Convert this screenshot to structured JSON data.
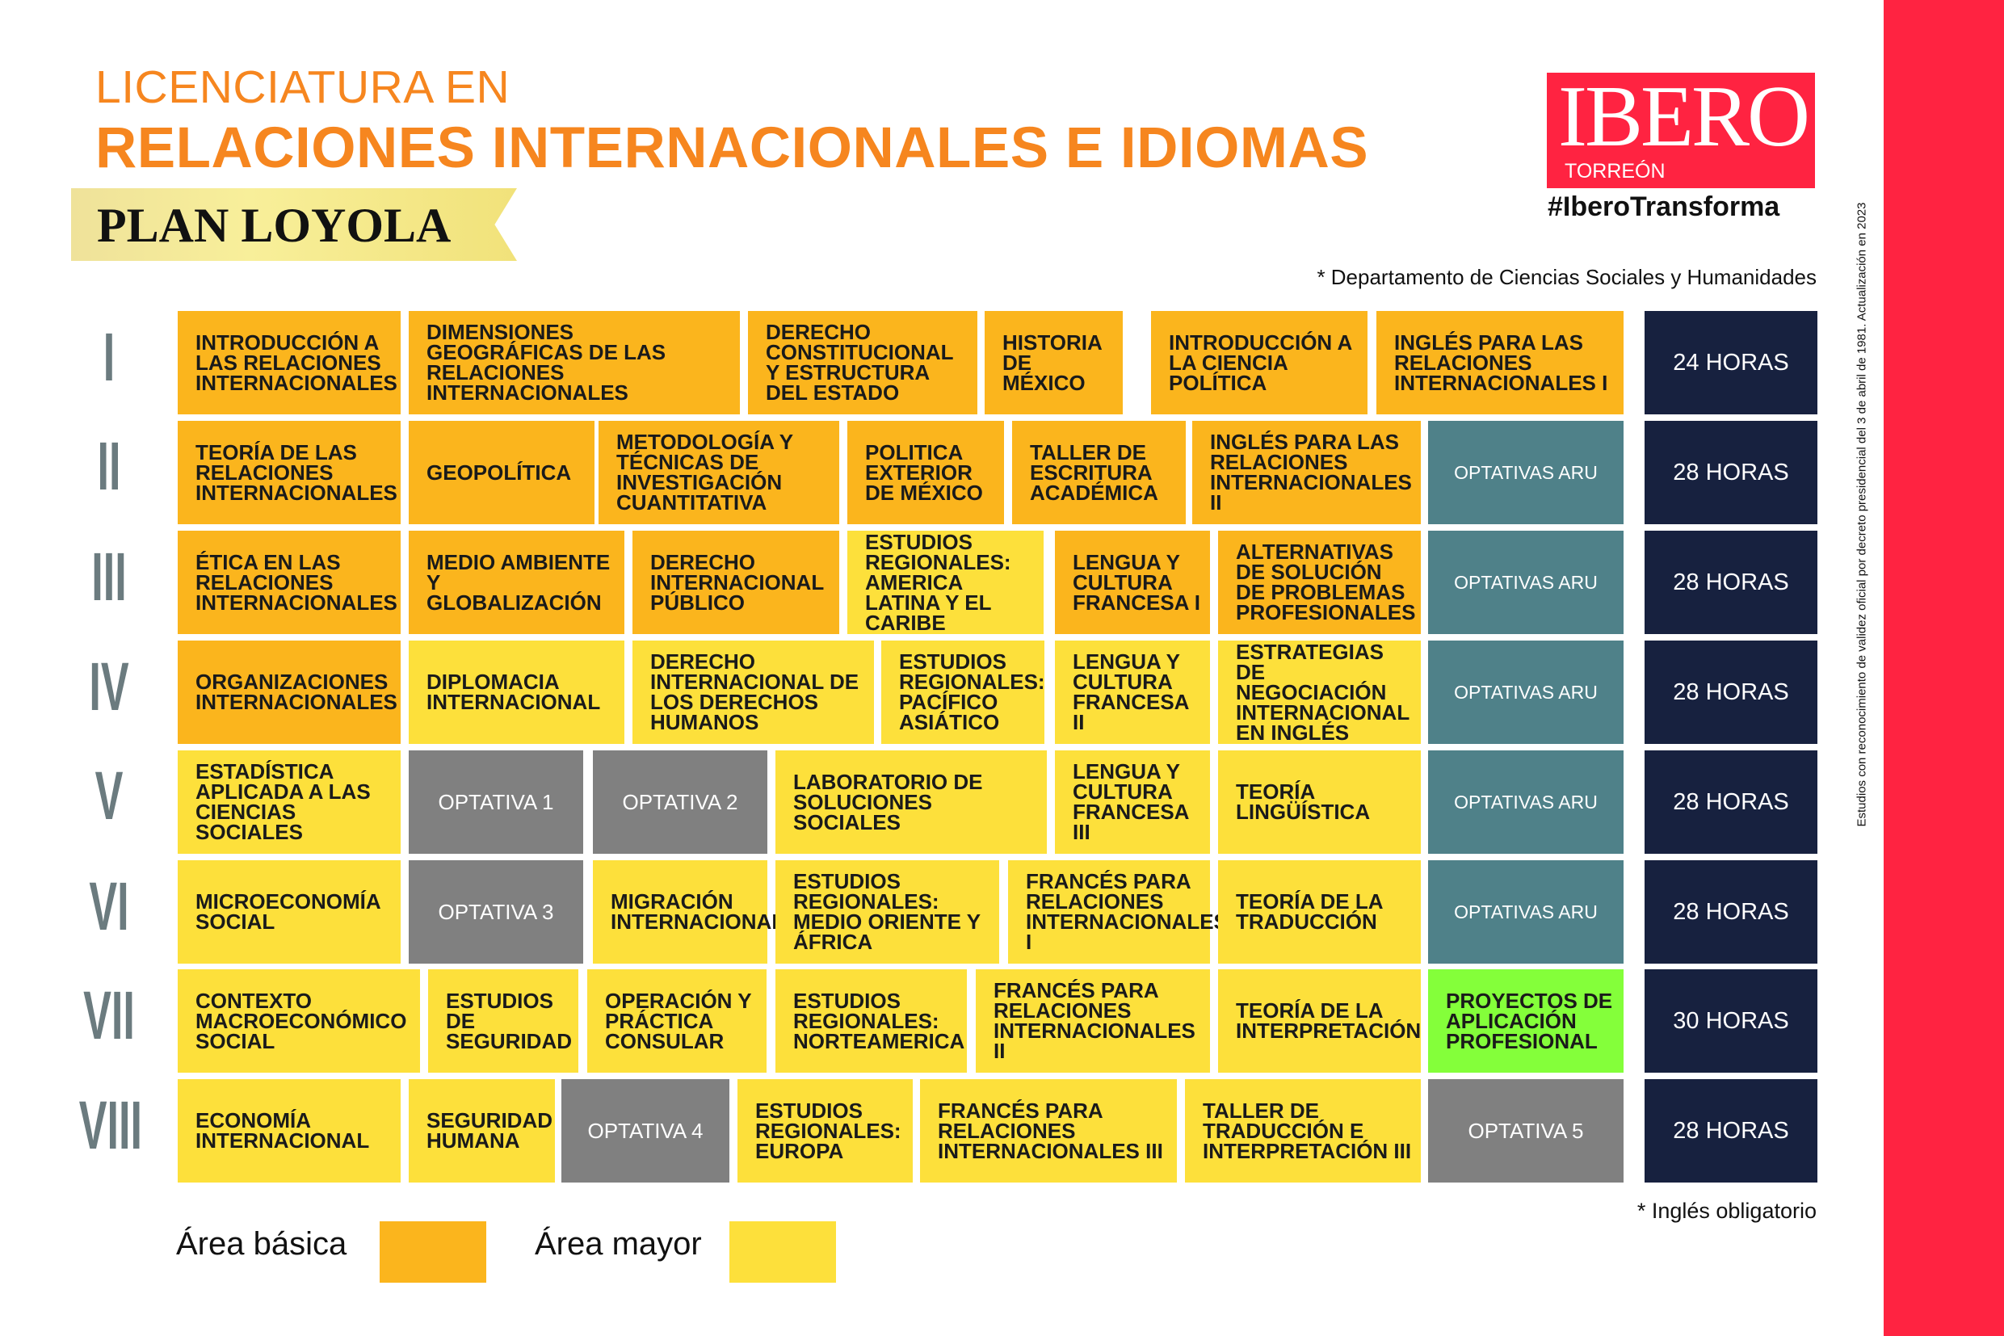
{
  "header": {
    "title_line1": "LICENCIATURA EN",
    "title_line2": "RELACIONES INTERNACIONALES E IDIOMAS",
    "plan": "PLAN LOYOLA",
    "department_note": "* Departamento de Ciencias Sociales y Humanidades"
  },
  "logo": {
    "name": "IBERO",
    "campus": "TORREÓN",
    "hashtag": "#IberoTransforma"
  },
  "side_note": "Estudios con reconocimiento de validez oficial por decreto presidencial del 3 de abril de 1981. Actualización en 2023",
  "semesters": [
    {
      "label": "I",
      "courses": [
        {
          "name": "INTRODUCCIÓN A LAS RELACIONES INTERNACIONALES",
          "area": "basic"
        },
        {
          "name": "DIMENSIONES GEOGRÁFICAS DE LAS RELACIONES INTERNACIONALES",
          "area": "basic"
        },
        {
          "name": "DERECHO CONSTITUCIONAL Y ESTRUCTURA DEL ESTADO",
          "area": "basic"
        },
        {
          "name": "HISTORIA DE MÉXICO",
          "area": "basic"
        },
        {
          "name": "INTRODUCCIÓN A LA CIENCIA POLÍTICA",
          "area": "basic"
        },
        {
          "name": "INGLÉS PARA LAS RELACIONES INTERNACIONALES I",
          "area": "basic"
        },
        {
          "name": "24 HORAS",
          "area": "hours"
        }
      ]
    },
    {
      "label": "II",
      "courses": [
        {
          "name": "TEORÍA DE LAS RELACIONES INTERNACIONALES",
          "area": "basic"
        },
        {
          "name": "GEOPOLÍTICA",
          "area": "basic"
        },
        {
          "name": "METODOLOGÍA Y TÉCNICAS DE INVESTIGACIÓN CUANTITATIVA",
          "area": "basic"
        },
        {
          "name": "POLITICA EXTERIOR DE MÉXICO",
          "area": "basic"
        },
        {
          "name": "TALLER DE ESCRITURA ACADÉMICA",
          "area": "basic"
        },
        {
          "name": "INGLÉS PARA LAS RELACIONES INTERNACIONALES II",
          "area": "basic"
        },
        {
          "name": "OPTATIVAS ARU",
          "area": "aru"
        },
        {
          "name": "28 HORAS",
          "area": "hours"
        }
      ]
    },
    {
      "label": "III",
      "courses": [
        {
          "name": "ÉTICA EN LAS RELACIONES INTERNACIONALES",
          "area": "basic"
        },
        {
          "name": "MEDIO AMBIENTE Y GLOBALIZACIÓN",
          "area": "basic"
        },
        {
          "name": "DERECHO INTERNACIONAL PÚBLICO",
          "area": "basic"
        },
        {
          "name": "ESTUDIOS REGIONALES: AMERICA LATINA Y EL CARIBE",
          "area": "major"
        },
        {
          "name": "LENGUA Y CULTURA FRANCESA I",
          "area": "basic"
        },
        {
          "name": "ALTERNATIVAS DE SOLUCIÓN DE PROBLEMAS PROFESIONALES",
          "area": "basic"
        },
        {
          "name": "OPTATIVAS ARU",
          "area": "aru"
        },
        {
          "name": "28 HORAS",
          "area": "hours"
        }
      ]
    },
    {
      "label": "IV",
      "courses": [
        {
          "name": "ORGANIZACIONES INTERNACIONALES",
          "area": "basic"
        },
        {
          "name": "DIPLOMACIA INTERNACIONAL",
          "area": "major"
        },
        {
          "name": "DERECHO INTERNACIONAL DE LOS DERECHOS HUMANOS",
          "area": "major"
        },
        {
          "name": "ESTUDIOS REGIONALES: PACÍFICO ASIÁTICO",
          "area": "major"
        },
        {
          "name": "LENGUA Y CULTURA FRANCESA II",
          "area": "major"
        },
        {
          "name": "ESTRATEGIAS DE NEGOCIACIÓN INTERNACIONAL EN INGLÉS",
          "area": "major"
        },
        {
          "name": "OPTATIVAS ARU",
          "area": "aru"
        },
        {
          "name": "28 HORAS",
          "area": "hours"
        }
      ]
    },
    {
      "label": "V",
      "courses": [
        {
          "name": "ESTADÍSTICA APLICADA A LAS CIENCIAS SOCIALES",
          "area": "major"
        },
        {
          "name": "OPTATIVA 1",
          "area": "opt"
        },
        {
          "name": "OPTATIVA 2",
          "area": "opt"
        },
        {
          "name": "LABORATORIO DE SOLUCIONES SOCIALES",
          "area": "major"
        },
        {
          "name": "LENGUA Y CULTURA FRANCESA III",
          "area": "major"
        },
        {
          "name": "TEORÍA LINGÜÍSTICA",
          "area": "major"
        },
        {
          "name": "OPTATIVAS ARU",
          "area": "aru"
        },
        {
          "name": "28 HORAS",
          "area": "hours"
        }
      ]
    },
    {
      "label": "VI",
      "courses": [
        {
          "name": "MICROECONOMÍA SOCIAL",
          "area": "major"
        },
        {
          "name": "OPTATIVA 3",
          "area": "opt"
        },
        {
          "name": "MIGRACIÓN INTERNACIONAL",
          "area": "major"
        },
        {
          "name": "ESTUDIOS REGIONALES: MEDIO ORIENTE Y ÁFRICA",
          "area": "major"
        },
        {
          "name": "FRANCÉS PARA RELACIONES INTERNACIONALES I",
          "area": "major"
        },
        {
          "name": "TEORÍA DE LA TRADUCCIÓN",
          "area": "major"
        },
        {
          "name": "OPTATIVAS ARU",
          "area": "aru"
        },
        {
          "name": "28 HORAS",
          "area": "hours"
        }
      ]
    },
    {
      "label": "VII",
      "courses": [
        {
          "name": "CONTEXTO MACROECONÓMICO SOCIAL",
          "area": "major"
        },
        {
          "name": "ESTUDIOS DE SEGURIDAD",
          "area": "major"
        },
        {
          "name": "OPERACIÓN Y PRÁCTICA CONSULAR",
          "area": "major"
        },
        {
          "name": "ESTUDIOS REGIONALES: NORTEAMERICA",
          "area": "major"
        },
        {
          "name": "FRANCÉS PARA RELACIONES INTERNACIONALES II",
          "area": "major"
        },
        {
          "name": "TEORÍA DE LA INTERPRETACIÓN",
          "area": "major"
        },
        {
          "name": "PROYECTOS DE APLICACIÓN PROFESIONAL",
          "area": "green"
        },
        {
          "name": "30 HORAS",
          "area": "hours"
        }
      ]
    },
    {
      "label": "VIII",
      "courses": [
        {
          "name": "ECONOMÍA INTERNACIONAL",
          "area": "major"
        },
        {
          "name": "SEGURIDAD HUMANA",
          "area": "major"
        },
        {
          "name": "OPTATIVA 4",
          "area": "opt"
        },
        {
          "name": "ESTUDIOS REGIONALES: EUROPA",
          "area": "major"
        },
        {
          "name": "FRANCÉS PARA RELACIONES INTERNACIONALES III",
          "area": "major"
        },
        {
          "name": "TALLER DE TRADUCCIÓN E INTERPRETACIÓN III",
          "area": "major"
        },
        {
          "name": "OPTATIVA 5",
          "area": "opt"
        },
        {
          "name": "28 HORAS",
          "area": "hours"
        }
      ]
    }
  ],
  "footer": {
    "english_note": "* Inglés obligatorio",
    "legend": [
      {
        "label": "Área básica",
        "color": "#fbb51d"
      },
      {
        "label": "Área mayor",
        "color": "#fde03b"
      }
    ]
  },
  "colors": {
    "accent_orange": "#f6861f",
    "brand_red": "#ff2341",
    "basic": "#fbb51d",
    "major": "#fde03b",
    "optativa": "#808080",
    "aru": "#4f8189",
    "hours": "#17213f",
    "projects": "#84ff3a"
  }
}
